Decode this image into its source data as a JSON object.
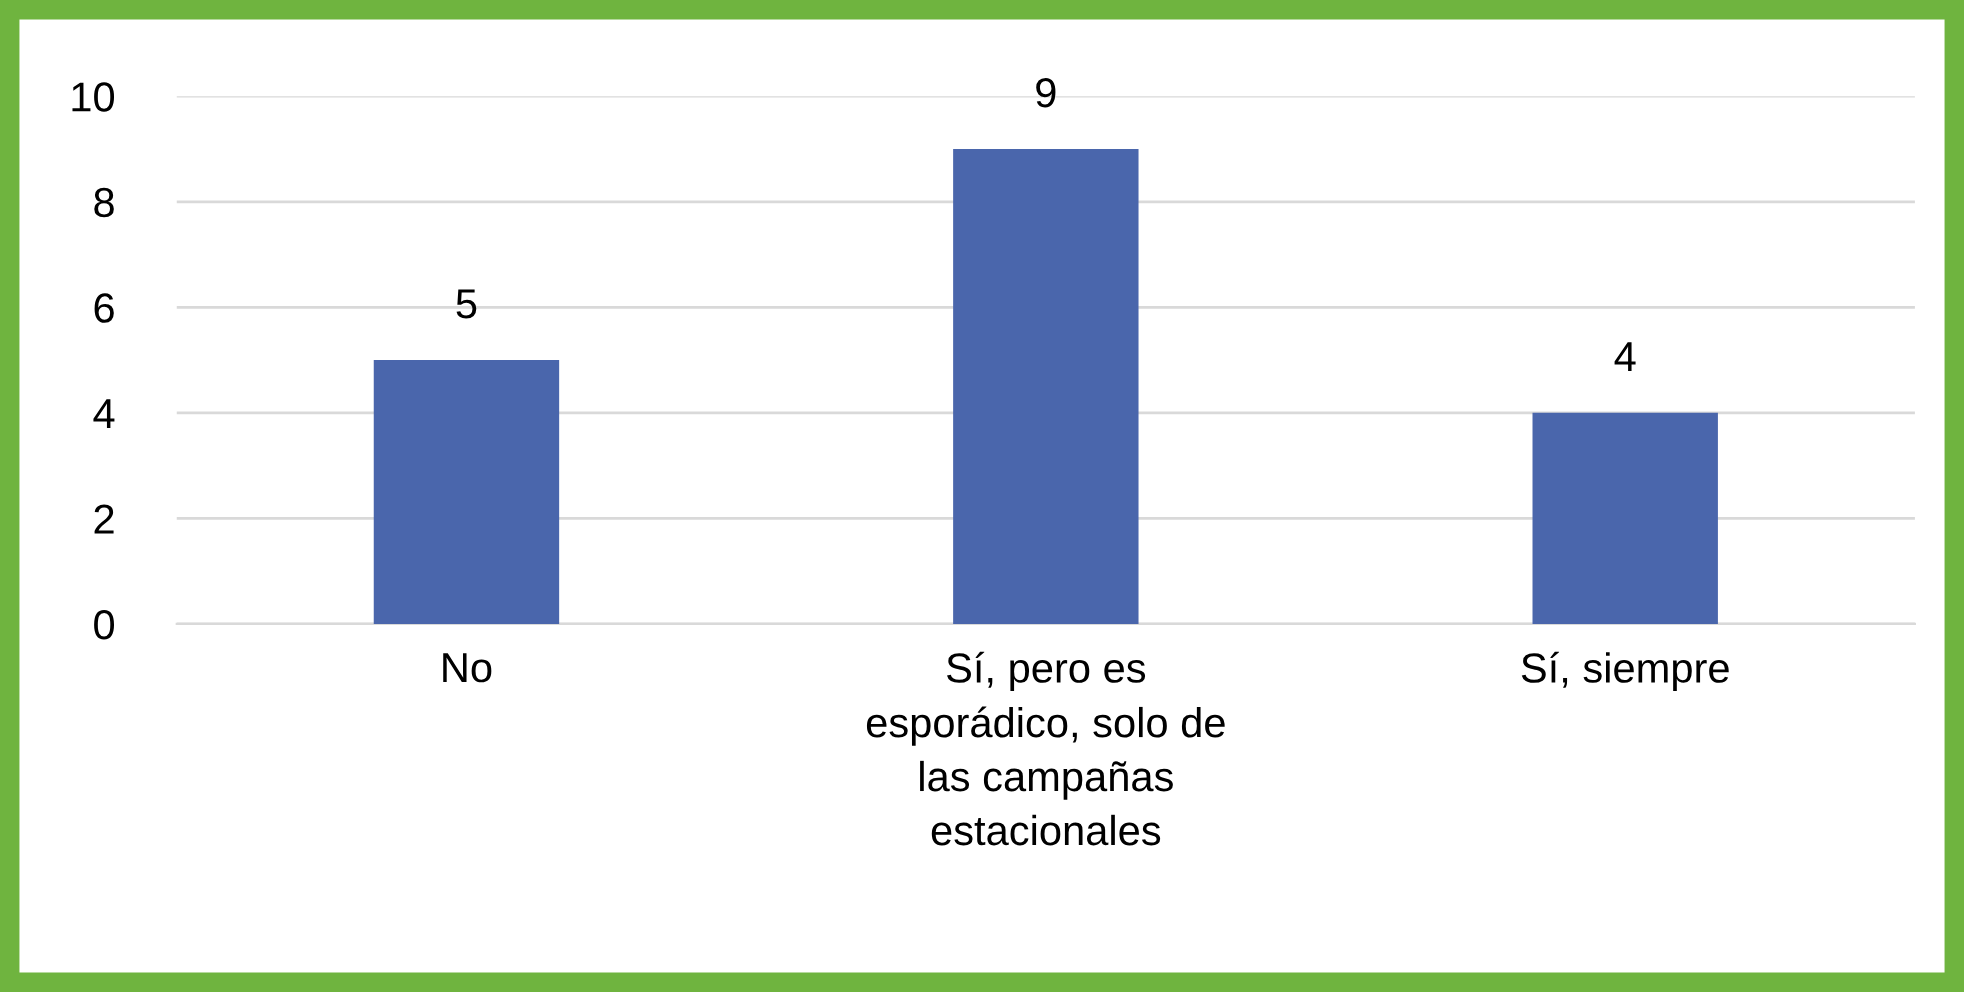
{
  "chart_data": {
    "type": "bar",
    "categories": [
      "No",
      "Sí, pero es\nesporádico, solo de\nlas campañas\nestacionales",
      "Sí, siempre"
    ],
    "values": [
      5,
      9,
      4
    ],
    "color": "#4a66ac",
    "ylim": [
      0,
      10
    ],
    "yticks": [
      0,
      2,
      4,
      6,
      8,
      10
    ],
    "grid": "y",
    "data_labels": true
  }
}
